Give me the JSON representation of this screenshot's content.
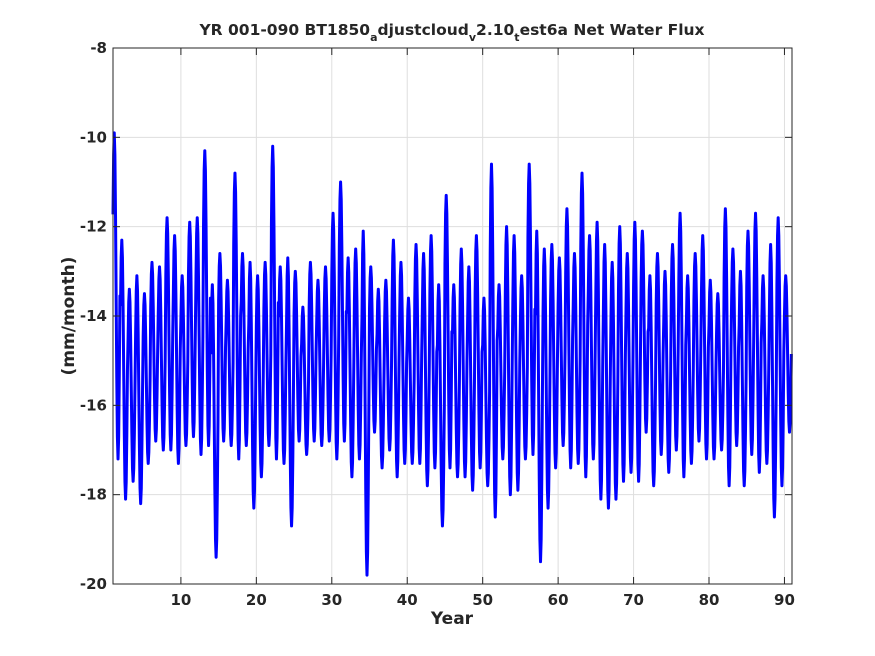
{
  "chart_data": {
    "type": "line",
    "title": {
      "parts": [
        {
          "text": "YR 001-090 BT1850",
          "sub": false
        },
        {
          "text": "a",
          "sub": true
        },
        {
          "text": "djustcloud",
          "sub": false
        },
        {
          "text": "v",
          "sub": true
        },
        {
          "text": "2.10",
          "sub": false
        },
        {
          "text": "t",
          "sub": true
        },
        {
          "text": "est6a Net Water Flux",
          "sub": false
        }
      ]
    },
    "xlabel": "Year",
    "ylabel": "(mm/month)",
    "xlim": [
      1,
      91
    ],
    "ylim": [
      -20,
      -8
    ],
    "xticks": [
      10,
      20,
      30,
      40,
      50,
      60,
      70,
      80,
      90
    ],
    "yticks": [
      -20,
      -18,
      -16,
      -14,
      -12,
      -10,
      -8
    ],
    "grid": true,
    "colors": {
      "series": "#0000ff",
      "grid": "#dedede",
      "axes": "#262626"
    },
    "series": [
      {
        "samples_per_year": 12,
        "x_start": 1,
        "annual_peaks": [
          -9.9,
          -12.3,
          -13.4,
          -13.1,
          -13.5,
          -12.8,
          -12.9,
          -11.8,
          -12.2,
          -13.1,
          -11.9,
          -11.8,
          -10.3,
          -13.3,
          -12.6,
          -13.2,
          -10.8,
          -12.6,
          -12.8,
          -13.1,
          -12.8,
          -10.2,
          -12.9,
          -12.7,
          -13.0,
          -13.8,
          -12.8,
          -13.2,
          -12.9,
          -11.7,
          -11.0,
          -12.7,
          -12.5,
          -12.1,
          -12.9,
          -13.4,
          -13.2,
          -12.3,
          -12.8,
          -13.6,
          -12.4,
          -12.6,
          -12.2,
          -13.3,
          -11.3,
          -13.3,
          -12.5,
          -12.9,
          -12.2,
          -13.6,
          -10.6,
          -13.3,
          -12.0,
          -12.2,
          -13.1,
          -10.6,
          -12.1,
          -12.5,
          -12.4,
          -12.7,
          -11.6,
          -12.6,
          -10.8,
          -12.2,
          -11.9,
          -12.4,
          -12.8,
          -12.0,
          -12.6,
          -11.9,
          -12.1,
          -13.1,
          -12.6,
          -13.0,
          -12.4,
          -11.7,
          -13.1,
          -12.6,
          -12.2,
          -13.2,
          -13.5,
          -11.6,
          -12.5,
          -13.0,
          -12.1,
          -11.7,
          -13.1,
          -12.4,
          -11.8,
          -13.1
        ],
        "annual_troughs": [
          -17.2,
          -18.1,
          -17.7,
          -18.2,
          -17.3,
          -16.8,
          -17.0,
          -17.0,
          -17.3,
          -16.9,
          -16.7,
          -17.1,
          -16.9,
          -19.4,
          -16.8,
          -16.9,
          -17.2,
          -16.9,
          -18.3,
          -17.6,
          -16.9,
          -17.2,
          -17.3,
          -18.7,
          -16.8,
          -17.1,
          -16.8,
          -16.9,
          -16.8,
          -17.2,
          -16.8,
          -17.6,
          -17.2,
          -19.8,
          -16.6,
          -17.4,
          -17.0,
          -17.6,
          -17.3,
          -17.3,
          -17.3,
          -17.8,
          -17.4,
          -18.7,
          -17.4,
          -17.6,
          -17.6,
          -17.9,
          -17.4,
          -17.8,
          -18.5,
          -17.2,
          -18.0,
          -17.9,
          -17.2,
          -17.1,
          -19.5,
          -18.3,
          -17.4,
          -16.9,
          -17.4,
          -17.3,
          -17.6,
          -17.2,
          -18.1,
          -18.3,
          -18.1,
          -17.7,
          -17.5,
          -17.7,
          -16.6,
          -17.8,
          -17.1,
          -17.5,
          -17.0,
          -17.6,
          -17.3,
          -16.8,
          -17.2,
          -17.2,
          -17.0,
          -17.8,
          -16.9,
          -17.8,
          -17.1,
          -17.5,
          -17.3,
          -18.5,
          -17.8,
          -16.6
        ]
      }
    ]
  }
}
